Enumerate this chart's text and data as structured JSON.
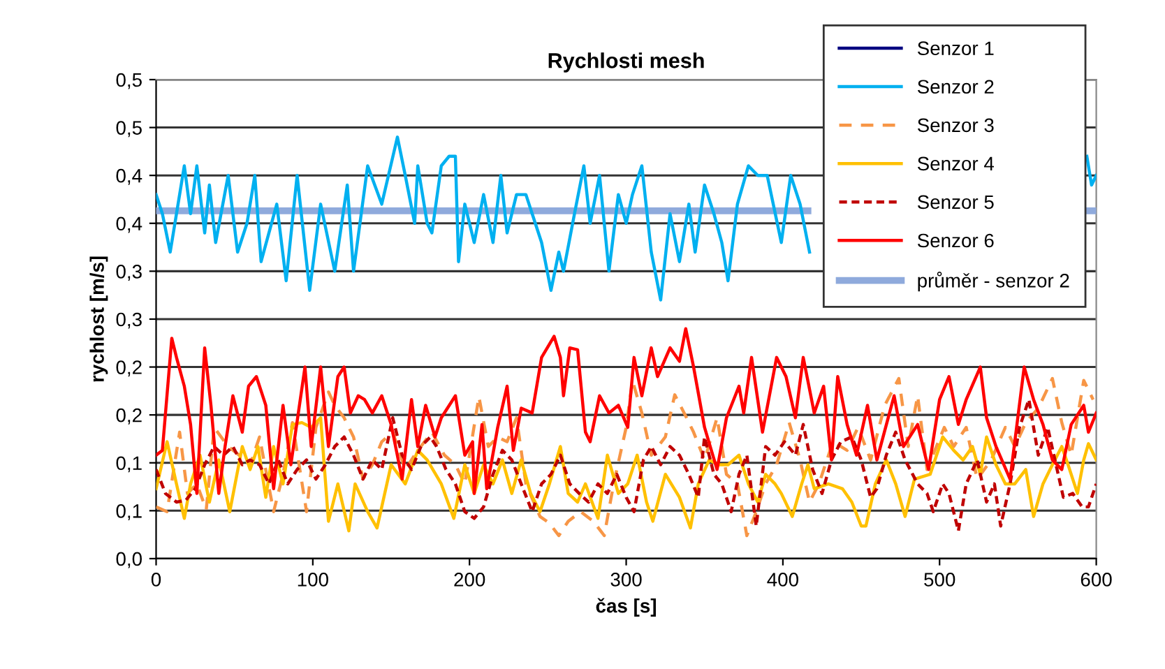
{
  "chart_data": {
    "type": "line",
    "title": "Rychlosti mesh",
    "xlabel": "čas [s]",
    "ylabel": "rychlost [m/s]",
    "xlim": [
      0,
      600
    ],
    "xticks": [
      0,
      100,
      200,
      300,
      400,
      500,
      600
    ],
    "ylim": [
      0,
      0.5
    ],
    "yticks": [
      {
        "value": 0,
        "label": "0,0"
      },
      {
        "value": 0.05,
        "label": "0,1"
      },
      {
        "value": 0.1,
        "label": "0,1"
      },
      {
        "value": 0.15,
        "label": "0,2"
      },
      {
        "value": 0.2,
        "label": "0,2"
      },
      {
        "value": 0.25,
        "label": "0,3"
      },
      {
        "value": 0.3,
        "label": "0,3"
      },
      {
        "value": 0.35,
        "label": "0,4"
      },
      {
        "value": 0.4,
        "label": "0,4"
      },
      {
        "value": 0.45,
        "label": "0,5"
      },
      {
        "value": 0.5,
        "label": "0,5"
      }
    ],
    "grid": "y",
    "legend": "top right",
    "marker": "none",
    "series": [
      {
        "name": "Senzor 1",
        "color": "#000080",
        "line_style": "solid"
      },
      {
        "name": "Senzor 2",
        "color": "#00b0f0",
        "line_style": "solid",
        "x": [
          0,
          4,
          9,
          13,
          18,
          22,
          26,
          31,
          34,
          38,
          46,
          52,
          58,
          63,
          67,
          77,
          83,
          90,
          98,
          105,
          114,
          122,
          126,
          135,
          144,
          154,
          159,
          165,
          167,
          173,
          176,
          182,
          187,
          191,
          193,
          197,
          203,
          209,
          215,
          220,
          224,
          230,
          236,
          240,
          246,
          252,
          257,
          260,
          267,
          273,
          277,
          283,
          289,
          295,
          300,
          304,
          310,
          316,
          322,
          328,
          334,
          340,
          344,
          350,
          356,
          361,
          365,
          371,
          378,
          384,
          390,
          399,
          405,
          411,
          417,
          422,
          590,
          594,
          597,
          600
        ],
        "values": [
          0.38,
          0.36,
          0.32,
          0.36,
          0.41,
          0.36,
          0.41,
          0.34,
          0.39,
          0.33,
          0.4,
          0.32,
          0.35,
          0.4,
          0.31,
          0.37,
          0.29,
          0.4,
          0.28,
          0.37,
          0.3,
          0.39,
          0.3,
          0.41,
          0.37,
          0.44,
          0.4,
          0.35,
          0.41,
          0.35,
          0.34,
          0.41,
          0.42,
          0.42,
          0.31,
          0.37,
          0.33,
          0.38,
          0.33,
          0.4,
          0.34,
          0.38,
          0.38,
          0.36,
          0.33,
          0.28,
          0.32,
          0.3,
          0.36,
          0.41,
          0.35,
          0.4,
          0.3,
          0.38,
          0.35,
          0.38,
          0.41,
          0.32,
          0.27,
          0.36,
          0.31,
          0.37,
          0.32,
          0.39,
          0.36,
          0.33,
          0.29,
          0.37,
          0.41,
          0.4,
          0.4,
          0.33,
          0.4,
          0.37,
          0.32,
          null,
          null,
          0.42,
          0.39,
          0.4
        ]
      },
      {
        "name": "Senzor 3",
        "color": "#f79646",
        "line_style": "dashed",
        "x": [
          0,
          7,
          15,
          20,
          26,
          32,
          37,
          46,
          53,
          60,
          66,
          75,
          81,
          87,
          96,
          102,
          110,
          114,
          120,
          126,
          132,
          138,
          144,
          151,
          159,
          167,
          176,
          184,
          191,
          197,
          206,
          212,
          218,
          224,
          230,
          236,
          245,
          251,
          257,
          263,
          271,
          279,
          286,
          292,
          300,
          304,
          310,
          316,
          325,
          331,
          337,
          343,
          350,
          358,
          364,
          371,
          377,
          383,
          389,
          396,
          404,
          411,
          417,
          423,
          432,
          441,
          448,
          456,
          465,
          474,
          480,
          486,
          492,
          497,
          503,
          509,
          517,
          524,
          533,
          542,
          548,
          555,
          563,
          572,
          578,
          584,
          592,
          598
        ],
        "values": [
          0.054,
          0.049,
          0.132,
          0.068,
          0.078,
          0.051,
          0.137,
          0.117,
          0.108,
          0.098,
          0.127,
          0.049,
          0.088,
          0.142,
          0.049,
          0.137,
          0.174,
          0.16,
          0.147,
          0.127,
          0.083,
          0.098,
          0.122,
          0.132,
          0.093,
          0.113,
          0.132,
          0.108,
          0.098,
          0.078,
          0.169,
          0.117,
          0.127,
          0.122,
          0.147,
          0.078,
          0.044,
          0.037,
          0.024,
          0.039,
          0.049,
          0.039,
          0.024,
          0.078,
          0.137,
          0.186,
          0.152,
          0.108,
          0.127,
          0.171,
          0.152,
          0.132,
          0.103,
          0.147,
          0.088,
          0.078,
          0.024,
          0.049,
          0.078,
          0.098,
          0.142,
          0.103,
          0.059,
          0.078,
          0.122,
          0.113,
          0.137,
          0.103,
          0.16,
          0.188,
          0.117,
          0.17,
          0.093,
          0.113,
          0.137,
          0.117,
          0.137,
          0.083,
          0.103,
          0.137,
          0.117,
          0.142,
          0.157,
          0.188,
          0.142,
          0.108,
          0.186,
          0.166
        ]
      },
      {
        "name": "Senzor 4",
        "color": "#ffc000",
        "line_style": "solid",
        "x": [
          0,
          7,
          13,
          18,
          22,
          28,
          34,
          40,
          47,
          55,
          60,
          65,
          70,
          75,
          81,
          87,
          93,
          99,
          105,
          110,
          116,
          123,
          127,
          135,
          141,
          150,
          159,
          167,
          173,
          182,
          190,
          197,
          203,
          209,
          215,
          221,
          227,
          233,
          239,
          245,
          251,
          258,
          263,
          269,
          274,
          282,
          288,
          295,
          301,
          307,
          313,
          317,
          325,
          334,
          341,
          346,
          353,
          359,
          365,
          372,
          378,
          384,
          389,
          395,
          399,
          406,
          412,
          416,
          420,
          429,
          438,
          444,
          450,
          453,
          459,
          466,
          472,
          478,
          484,
          494,
          502,
          509,
          515,
          521,
          526,
          530,
          536,
          542,
          548,
          555,
          560,
          566,
          572,
          578,
          582,
          588,
          592,
          595,
          600
        ],
        "values": [
          0.073,
          0.122,
          0.078,
          0.042,
          0.078,
          0.108,
          0.059,
          0.103,
          0.049,
          0.117,
          0.093,
          0.117,
          0.064,
          0.117,
          0.078,
          0.14,
          0.142,
          0.137,
          0.147,
          0.039,
          0.078,
          0.029,
          0.078,
          0.049,
          0.032,
          0.098,
          0.078,
          0.113,
          0.103,
          0.078,
          0.042,
          0.098,
          0.068,
          0.098,
          0.078,
          0.103,
          0.068,
          0.103,
          0.068,
          0.049,
          0.078,
          0.117,
          0.068,
          0.059,
          0.078,
          0.042,
          0.108,
          0.068,
          0.078,
          0.108,
          0.059,
          0.039,
          0.088,
          0.064,
          0.032,
          0.078,
          0.103,
          0.098,
          0.098,
          0.108,
          0.078,
          0.059,
          0.088,
          0.078,
          0.068,
          0.044,
          0.078,
          0.098,
          0.073,
          0.078,
          0.073,
          0.059,
          0.034,
          0.034,
          0.078,
          0.103,
          0.078,
          0.044,
          0.083,
          0.088,
          0.127,
          0.113,
          0.103,
          0.117,
          0.088,
          0.127,
          0.098,
          0.078,
          0.078,
          0.093,
          0.044,
          0.078,
          0.098,
          0.117,
          0.098,
          0.068,
          0.103,
          0.12,
          0.103
        ]
      },
      {
        "name": "Senzor 5",
        "color": "#c00000",
        "line_style": "dotted",
        "x": [
          0,
          6,
          13,
          19,
          25,
          31,
          37,
          43,
          49,
          55,
          60,
          66,
          72,
          78,
          84,
          90,
          96,
          102,
          108,
          114,
          120,
          126,
          132,
          138,
          144,
          151,
          157,
          163,
          169,
          175,
          179,
          185,
          191,
          197,
          203,
          209,
          215,
          221,
          227,
          233,
          240,
          246,
          252,
          258,
          264,
          270,
          276,
          282,
          288,
          294,
          300,
          305,
          311,
          316,
          322,
          328,
          334,
          340,
          346,
          350,
          356,
          361,
          367,
          372,
          377,
          383,
          389,
          395,
          401,
          408,
          413,
          419,
          425,
          431,
          437,
          444,
          450,
          456,
          460,
          466,
          472,
          478,
          486,
          492,
          496,
          502,
          506,
          512,
          517,
          524,
          530,
          535,
          539,
          545,
          551,
          557,
          563,
          569,
          575,
          579,
          585,
          591,
          595,
          600
        ],
        "values": [
          0.093,
          0.068,
          0.059,
          0.061,
          0.073,
          0.098,
          0.117,
          0.108,
          0.117,
          0.098,
          0.103,
          0.098,
          0.078,
          0.103,
          0.078,
          0.093,
          0.103,
          0.083,
          0.098,
          0.117,
          0.127,
          0.108,
          0.083,
          0.103,
          0.093,
          0.147,
          0.108,
          0.093,
          0.117,
          0.127,
          0.117,
          0.093,
          0.078,
          0.049,
          0.042,
          0.054,
          0.088,
          0.113,
          0.103,
          0.078,
          0.049,
          0.078,
          0.088,
          0.108,
          0.078,
          0.068,
          0.059,
          0.078,
          0.068,
          0.088,
          0.064,
          0.049,
          0.103,
          0.117,
          0.098,
          0.117,
          0.108,
          0.088,
          0.064,
          0.127,
          0.088,
          0.078,
          0.049,
          0.088,
          0.108,
          0.034,
          0.117,
          0.108,
          0.122,
          0.108,
          0.14,
          0.093,
          0.068,
          0.103,
          0.122,
          0.127,
          0.103,
          0.064,
          0.073,
          0.108,
          0.132,
          0.103,
          0.078,
          0.068,
          0.049,
          0.078,
          0.068,
          0.029,
          0.078,
          0.103,
          0.059,
          0.078,
          0.034,
          0.078,
          0.137,
          0.166,
          0.108,
          0.137,
          0.093,
          0.064,
          0.068,
          0.054,
          0.054,
          0.078
        ]
      },
      {
        "name": "Senzor 6",
        "color": "#ff0000",
        "line_style": "solid",
        "x": [
          0,
          4,
          10,
          13,
          18,
          22,
          26,
          31,
          35,
          40,
          44,
          49,
          55,
          59,
          64,
          70,
          75,
          81,
          86,
          95,
          99,
          105,
          110,
          116,
          120,
          124,
          129,
          133,
          138,
          144,
          150,
          157,
          163,
          167,
          172,
          178,
          182,
          191,
          197,
          202,
          203,
          208,
          211,
          218,
          224,
          228,
          233,
          240,
          246,
          254,
          258,
          260,
          264,
          269,
          274,
          277,
          283,
          289,
          295,
          301,
          305,
          310,
          316,
          320,
          328,
          334,
          338,
          343,
          350,
          358,
          364,
          372,
          375,
          380,
          387,
          396,
          402,
          408,
          413,
          420,
          426,
          431,
          435,
          441,
          447,
          454,
          460,
          471,
          477,
          486,
          493,
          500,
          506,
          512,
          517,
          526,
          530,
          536,
          545,
          554,
          560,
          566,
          572,
          578,
          584,
          592,
          595,
          600
        ],
        "values": [
          0.108,
          0.113,
          0.23,
          0.21,
          0.18,
          0.14,
          0.068,
          0.22,
          0.16,
          0.068,
          0.117,
          0.17,
          0.132,
          0.18,
          0.19,
          0.16,
          0.073,
          0.16,
          0.098,
          0.2,
          0.117,
          0.2,
          0.117,
          0.19,
          0.2,
          0.152,
          0.17,
          0.166,
          0.152,
          0.17,
          0.14,
          0.083,
          0.166,
          0.117,
          0.16,
          0.127,
          0.147,
          0.17,
          0.108,
          0.122,
          0.068,
          0.14,
          0.073,
          0.137,
          0.18,
          0.113,
          0.157,
          0.152,
          0.21,
          0.232,
          0.21,
          0.17,
          0.22,
          0.218,
          0.132,
          0.122,
          0.17,
          0.152,
          0.16,
          0.137,
          0.21,
          0.17,
          0.22,
          0.19,
          0.22,
          0.206,
          0.24,
          0.2,
          0.137,
          0.093,
          0.147,
          0.18,
          0.152,
          0.21,
          0.132,
          0.21,
          0.19,
          0.147,
          0.21,
          0.152,
          0.18,
          0.103,
          0.19,
          0.14,
          0.108,
          0.16,
          0.103,
          0.17,
          0.117,
          0.14,
          0.093,
          0.166,
          0.19,
          0.14,
          0.166,
          0.2,
          0.147,
          0.117,
          0.083,
          0.2,
          0.166,
          0.14,
          0.103,
          0.093,
          0.14,
          0.16,
          0.132,
          0.152
        ]
      },
      {
        "name": "průměr - senzor 2",
        "color": "#8faadc",
        "line_style": "solid",
        "x": [
          0,
          416,
          430,
          594,
          600
        ],
        "values": [
          0.363,
          0.363,
          null,
          0.363,
          0.363
        ]
      }
    ]
  }
}
